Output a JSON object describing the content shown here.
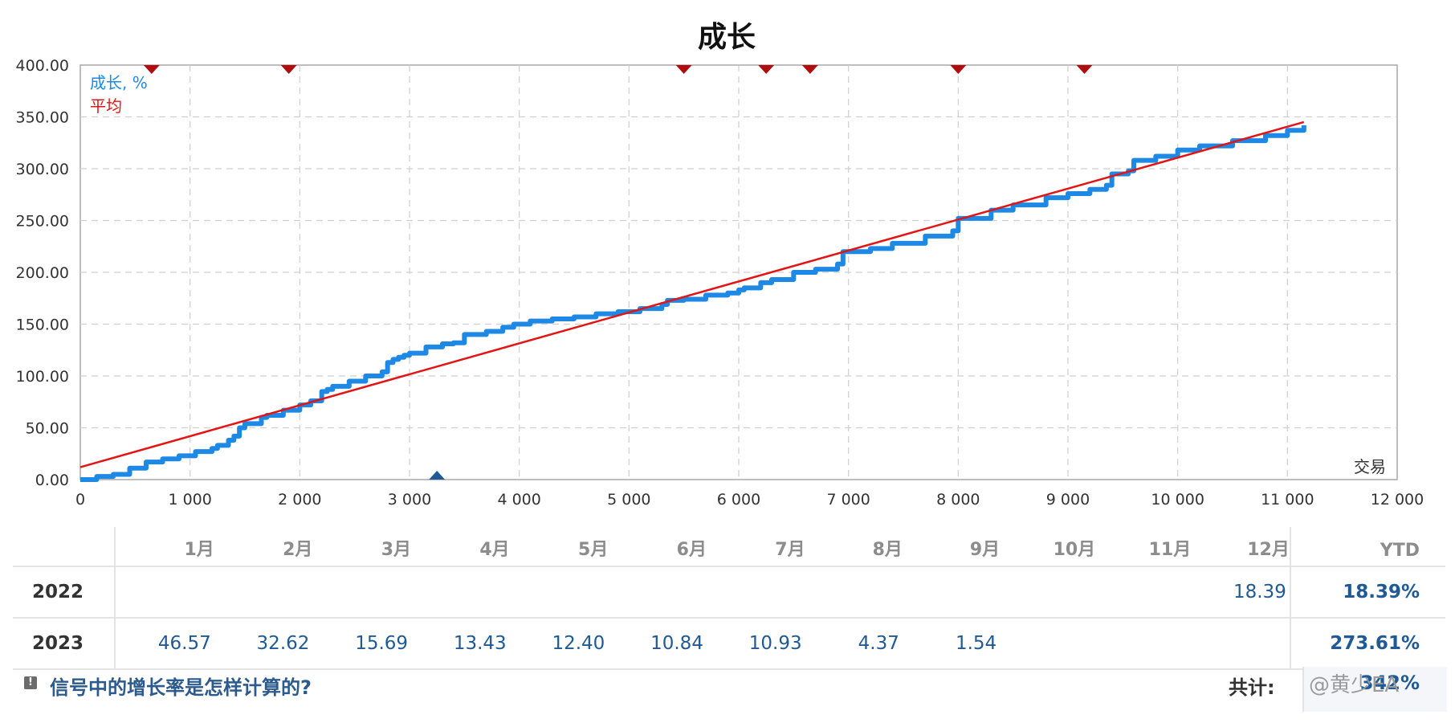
{
  "chart_data": {
    "type": "line",
    "title": "成长",
    "xlabel": "交易",
    "xlim": [
      0,
      12000
    ],
    "ylim": [
      0,
      400
    ],
    "xticks": [
      0,
      1000,
      2000,
      3000,
      4000,
      5000,
      6000,
      7000,
      8000,
      9000,
      10000,
      11000,
      12000
    ],
    "xtick_labels": [
      "0",
      "1 000",
      "2 000",
      "3 000",
      "4 000",
      "5 000",
      "6 000",
      "7 000",
      "8 000",
      "9 000",
      "10 000",
      "11 000",
      "12 000"
    ],
    "yticks": [
      0,
      50,
      100,
      150,
      200,
      250,
      300,
      350,
      400
    ],
    "ytick_labels": [
      "0.00",
      "50.00",
      "100.00",
      "150.00",
      "200.00",
      "250.00",
      "300.00",
      "350.00",
      "400.00"
    ],
    "grid": true,
    "legend_position": "top-left",
    "series": [
      {
        "name": "成长, %",
        "color": "#1e88e5",
        "x": [
          0,
          150,
          300,
          450,
          600,
          750,
          900,
          1050,
          1200,
          1250,
          1350,
          1400,
          1450,
          1500,
          1650,
          1700,
          1850,
          2000,
          2100,
          2200,
          2250,
          2300,
          2450,
          2600,
          2750,
          2800,
          2850,
          2900,
          2950,
          3000,
          3150,
          3300,
          3400,
          3500,
          3700,
          3850,
          3950,
          4100,
          4300,
          4500,
          4700,
          4900,
          5100,
          5300,
          5350,
          5500,
          5700,
          5900,
          6000,
          6050,
          6200,
          6300,
          6500,
          6700,
          6900,
          6950,
          7200,
          7400,
          7700,
          7950,
          8000,
          8300,
          8500,
          8800,
          9000,
          9200,
          9350,
          9400,
          9550,
          9600,
          9800,
          10000,
          10200,
          10500,
          10800,
          11000,
          11150
        ],
        "y": [
          0,
          3,
          5,
          11,
          17,
          20,
          23,
          27,
          30,
          33,
          38,
          42,
          50,
          54,
          60,
          62,
          67,
          72,
          76,
          85,
          87,
          90,
          95,
          100,
          104,
          113,
          116,
          118,
          120,
          122,
          128,
          131,
          132,
          140,
          143,
          147,
          150,
          153,
          155,
          157,
          160,
          162,
          165,
          169,
          173,
          174,
          178,
          180,
          183,
          185,
          190,
          193,
          200,
          203,
          208,
          220,
          223,
          228,
          235,
          240,
          252,
          260,
          265,
          272,
          276,
          280,
          284,
          295,
          298,
          308,
          312,
          318,
          322,
          327,
          332,
          337,
          342
        ]
      },
      {
        "name": "平均",
        "color": "#e31414",
        "x": [
          0,
          11150
        ],
        "y": [
          12,
          345
        ]
      }
    ],
    "markers": {
      "down": {
        "color": "#b00e0e",
        "x": [
          650,
          1900,
          5500,
          6250,
          6650,
          8000,
          9150
        ]
      },
      "up": {
        "color": "#1f5a96",
        "x": [
          3250
        ]
      }
    }
  },
  "monthly": {
    "months": [
      "1月",
      "2月",
      "3月",
      "4月",
      "5月",
      "6月",
      "7月",
      "8月",
      "9月",
      "10月",
      "11月",
      "12月"
    ],
    "ytd_label": "YTD",
    "rows": [
      {
        "year": "2022",
        "values": [
          "",
          "",
          "",
          "",
          "",
          "",
          "",
          "",
          "",
          "",
          "",
          "18.39"
        ],
        "ytd": "18.39%"
      },
      {
        "year": "2023",
        "values": [
          "46.57",
          "32.62",
          "15.69",
          "13.43",
          "12.40",
          "10.84",
          "10.93",
          "4.37",
          "1.54",
          "",
          "",
          ""
        ],
        "ytd": "273.61%"
      }
    ]
  },
  "footer": {
    "help_icon": "info-icon",
    "help_text": "信号中的增长率是怎样计算的?",
    "total_label": "共计:",
    "total_value": "342%"
  },
  "watermark": "@黄少EA"
}
